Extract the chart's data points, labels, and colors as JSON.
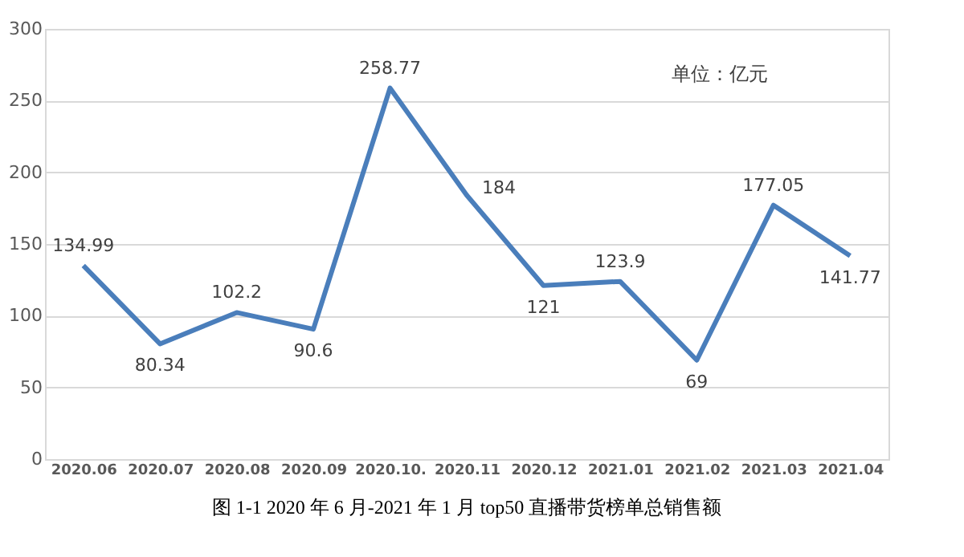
{
  "chart_data": {
    "type": "line",
    "categories": [
      "2020.06",
      "2020.07",
      "2020.08",
      "2020.09",
      "2020.10.",
      "2020.11",
      "2020.12",
      "2021.01",
      "2021.02",
      "2021.03",
      "2021.04"
    ],
    "series": [
      {
        "color": "#4a7ebb",
        "values": [
          134.99,
          80.34,
          102.2,
          90.6,
          258.77,
          184,
          121,
          123.9,
          69,
          177.05,
          141.77
        ]
      }
    ],
    "ylim": [
      0,
      300
    ],
    "yticks": [
      0,
      50,
      100,
      150,
      200,
      250,
      300
    ],
    "grid": "y",
    "data_labels": true,
    "marker": "none",
    "line_style": "solid",
    "annotations": [
      "单位：亿元",
      "图 1-1 2020 年 6 月-2021 年 1 月 top50 直播带货榜单总销售额"
    ]
  }
}
